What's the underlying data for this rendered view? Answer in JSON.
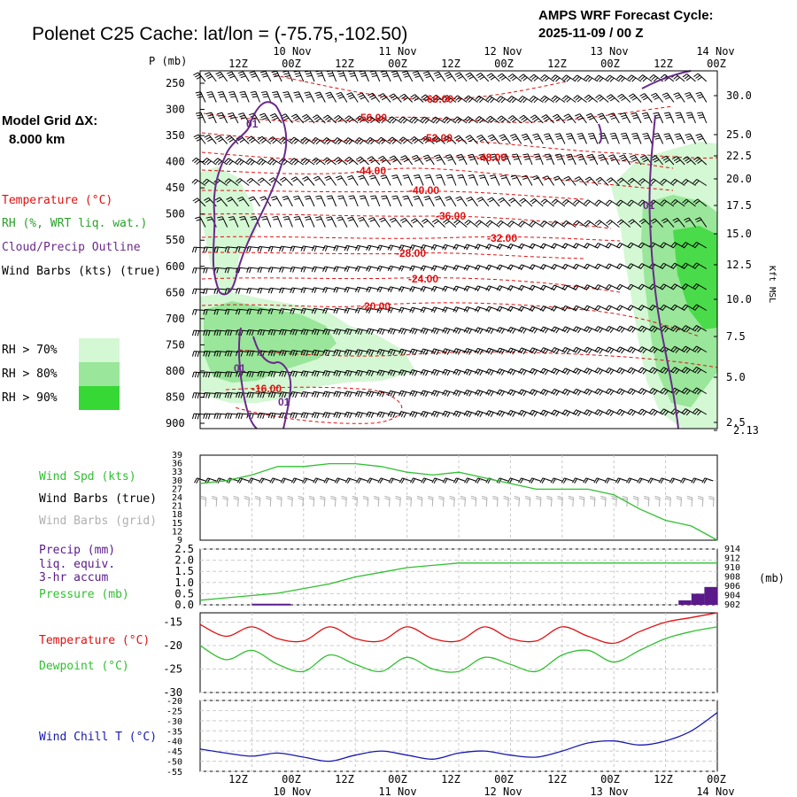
{
  "header": {
    "title": "Polenet C25 Cache:  lat/lon = (-75.75,-102.50)",
    "cycle_line1": "AMPS WRF Forecast Cycle:",
    "cycle_line2": "2025-11-09 / 00  Z"
  },
  "grid": {
    "line1": "Model Grid ΔX:",
    "line2": "8.000 km"
  },
  "colors": {
    "temperature": "#e01010",
    "rh_text": "#2aa02a",
    "cloud": "#6a2a8a",
    "wind": "#000000",
    "wind_grid": "#b0b0b0",
    "windspd": "#30c030",
    "dewpoint": "#30c030",
    "windchill": "#1818b0",
    "precip": "#5a1a8a",
    "rh70": "#d4f7d4",
    "rh80": "#9ae69a",
    "rh90": "#36d836"
  },
  "legend": {
    "temperature": "Temperature (°C)",
    "rh": "RH (%, WRT liq. wat.)",
    "cloud": "Cloud/Precip Outline",
    "wind": "Wind Barbs (kts) (true)",
    "rh70": "RH > 70%",
    "rh80": "RH > 80%",
    "rh90": "RH > 90%"
  },
  "time_axis": {
    "top_dates": [
      "10 Nov",
      "11 Nov",
      "12 Nov",
      "13 Nov",
      "14 Nov"
    ],
    "hour_labels": [
      "12Z",
      "00Z",
      "12Z",
      "00Z",
      "12Z",
      "00Z",
      "12Z",
      "00Z",
      "12Z",
      "00Z"
    ],
    "bottom_dates": [
      "10 Nov",
      "11 Nov",
      "12 Nov",
      "13 Nov",
      "14 Nov"
    ]
  },
  "chart_data": [
    {
      "type": "contour",
      "name": "cross-section",
      "ylabel": "P (mb)",
      "yright_label": "Kft MSL",
      "pressure_ticks": [
        "250",
        "300",
        "350",
        "400",
        "450",
        "500",
        "550",
        "600",
        "650",
        "700",
        "750",
        "800",
        "850",
        "900"
      ],
      "height_ticks": [
        "30.0",
        "25.0",
        "22.5",
        "20.0",
        "17.5",
        "15.0",
        "12.5",
        "10.0",
        "7.5",
        "5.0",
        "2.5",
        "2.13"
      ],
      "temperature_labels": [
        "-60.00",
        "-56.00",
        "-52.00",
        "-48.00",
        "-44.00",
        "-40.00",
        "-36.00",
        "-32.00",
        "-28.00",
        "-24.00",
        "-20.00",
        "-16.00"
      ],
      "cloud_labels": [
        "01",
        "01",
        "01",
        "01"
      ]
    },
    {
      "type": "line",
      "name": "wind",
      "legend": [
        "Wind Spd (kts)",
        "Wind Barbs (true)",
        "Wind Barbs (grid)"
      ],
      "yticks": [
        "39",
        "36",
        "33",
        "30",
        "27",
        "24",
        "21",
        "18",
        "15",
        "12",
        "9"
      ],
      "ylim": [
        9,
        39
      ],
      "x_hours": [
        0,
        6,
        12,
        18,
        24,
        30,
        36,
        42,
        48,
        54,
        60,
        66,
        72,
        78,
        84,
        90,
        96,
        102,
        108,
        114,
        120
      ],
      "series": [
        {
          "name": "Wind Spd (kts)",
          "values": [
            29,
            30,
            32,
            35,
            35,
            36,
            36,
            35,
            33,
            32,
            33,
            31,
            29,
            27,
            27,
            27,
            25,
            20,
            16,
            14,
            9
          ]
        }
      ]
    },
    {
      "type": "line",
      "name": "precip-pressure",
      "legend": [
        "Precip (mm)",
        "liq. equiv.",
        "3-hr accum",
        "Pressure (mb)"
      ],
      "yticks_left": [
        "2.5",
        "2.0",
        "1.5",
        "1.0",
        "0.5",
        "0.0"
      ],
      "yticks_right": [
        "914",
        "912",
        "910",
        "908",
        "906",
        "904",
        "902"
      ],
      "right_unit": "(mb)",
      "ylim_left": [
        0,
        2.5
      ],
      "ylim_right": [
        902,
        914
      ],
      "x_hours": [
        0,
        6,
        12,
        18,
        24,
        30,
        36,
        42,
        48,
        54,
        60,
        66,
        72,
        78,
        84,
        90,
        96,
        102,
        108,
        114,
        120
      ],
      "series": [
        {
          "name": "Pressure (mb)",
          "values": [
            903.0,
            903.5,
            904.0,
            904.5,
            905.5,
            906.5,
            908.0,
            909.0,
            910.0,
            910.5,
            911.0,
            911.0,
            911.0,
            911.0,
            911.0,
            911.0,
            911.0,
            911.0,
            911.0,
            911.0,
            911.0
          ]
        }
      ],
      "precip_bars": [
        {
          "hour": 12,
          "value": 0.05
        },
        {
          "hour": 15,
          "value": 0.05
        },
        {
          "hour": 18,
          "value": 0.05
        },
        {
          "hour": 111,
          "value": 0.2
        },
        {
          "hour": 114,
          "value": 0.5
        },
        {
          "hour": 117,
          "value": 0.8
        }
      ]
    },
    {
      "type": "line",
      "name": "temperature-dewpoint",
      "legend": [
        "Temperature (°C)",
        "Dewpoint (°C)"
      ],
      "yticks": [
        "-15",
        "-20",
        "-25",
        "-30"
      ],
      "ylim": [
        -30,
        -13
      ],
      "x_hours": [
        0,
        6,
        12,
        18,
        24,
        30,
        36,
        42,
        48,
        54,
        60,
        66,
        72,
        78,
        84,
        90,
        96,
        102,
        108,
        114,
        120
      ],
      "series": [
        {
          "name": "Temperature (°C)",
          "values": [
            -15.5,
            -18.0,
            -16.0,
            -18.5,
            -19.0,
            -16.0,
            -18.5,
            -19.0,
            -16.0,
            -18.5,
            -19.0,
            -16.0,
            -18.5,
            -19.0,
            -16.0,
            -18.0,
            -19.5,
            -17.0,
            -15.0,
            -14.0,
            -13.0
          ]
        },
        {
          "name": "Dewpoint (°C)",
          "values": [
            -20.0,
            -23.0,
            -21.0,
            -24.0,
            -25.5,
            -22.0,
            -24.0,
            -25.5,
            -22.5,
            -25.0,
            -25.5,
            -22.5,
            -24.0,
            -25.5,
            -22.0,
            -21.0,
            -23.5,
            -21.0,
            -18.5,
            -17.0,
            -16.0
          ]
        }
      ]
    },
    {
      "type": "line",
      "name": "windchill",
      "legend": [
        "Wind Chill T (°C)"
      ],
      "yticks": [
        "-20",
        "-25",
        "-30",
        "-35",
        "-40",
        "-45",
        "-50",
        "-55"
      ],
      "ylim": [
        -55,
        -20
      ],
      "x_hours": [
        0,
        6,
        12,
        18,
        24,
        30,
        36,
        42,
        48,
        54,
        60,
        66,
        72,
        78,
        84,
        90,
        96,
        102,
        108,
        114,
        120
      ],
      "series": [
        {
          "name": "Wind Chill T (°C)",
          "values": [
            -44.0,
            -46.0,
            -47.5,
            -46.0,
            -48.0,
            -50.0,
            -47.0,
            -45.0,
            -47.0,
            -49.0,
            -46.0,
            -45.0,
            -47.0,
            -48.0,
            -45.0,
            -41.0,
            -40.0,
            -42.0,
            -40.0,
            -35.0,
            -26.0
          ]
        }
      ]
    }
  ]
}
